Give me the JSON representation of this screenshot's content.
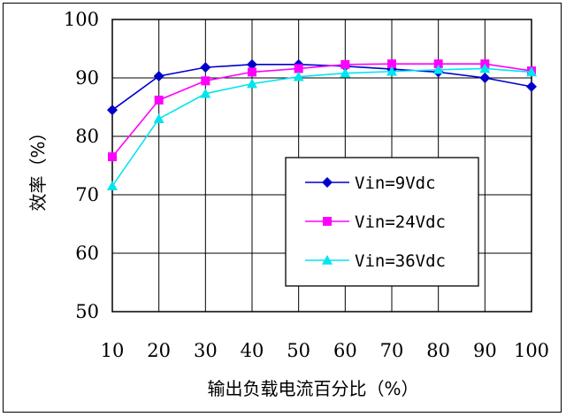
{
  "chart_data": {
    "type": "line",
    "xlabel": "输出负载电流百分比（%）",
    "ylabel": "效率（%）",
    "x": [
      10,
      20,
      30,
      40,
      50,
      60,
      70,
      80,
      90,
      100
    ],
    "xlim": [
      10,
      100
    ],
    "ylim": [
      50,
      100
    ],
    "yticks": [
      50,
      60,
      70,
      80,
      90,
      100
    ],
    "grid": true,
    "legend_position": "center-right",
    "series": [
      {
        "name": "Vin=9Vdc",
        "color": "#0000cc",
        "marker": "diamond",
        "values": [
          84.5,
          90.3,
          91.8,
          92.3,
          92.3,
          92.0,
          91.5,
          91.0,
          90.0,
          88.5
        ]
      },
      {
        "name": "Vin=24Vdc",
        "color": "#ff00ff",
        "marker": "square",
        "values": [
          76.5,
          86.2,
          89.5,
          91.0,
          91.6,
          92.3,
          92.4,
          92.4,
          92.4,
          91.2
        ]
      },
      {
        "name": "Vin=36Vdc",
        "color": "#00e5ee",
        "marker": "triangle",
        "values": [
          71.5,
          83.0,
          87.3,
          89.0,
          90.2,
          90.8,
          91.1,
          91.4,
          91.6,
          91.0
        ]
      }
    ]
  }
}
